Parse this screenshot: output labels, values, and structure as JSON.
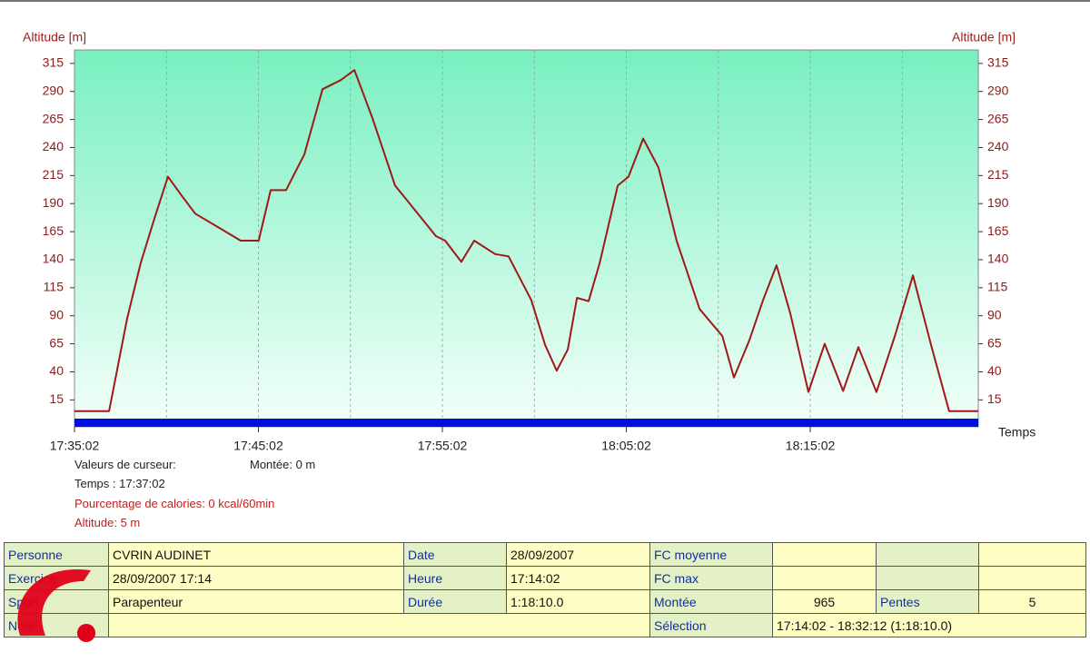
{
  "chart_data": {
    "type": "line",
    "ylabel": "Altitude [m]",
    "y2label": "Altitude [m]",
    "xlabel": "Temps",
    "color": "#a01818",
    "x": [
      "17:35:02",
      "17:36:55",
      "17:37:54",
      "17:38:38",
      "17:39:23",
      "17:40:07",
      "17:40:52",
      "17:41:36",
      "17:42:50",
      "17:44:04",
      "17:45:03",
      "17:45:42",
      "17:46:32",
      "17:47:32",
      "17:48:31",
      "17:49:30",
      "17:50:15",
      "17:51:14",
      "17:52:28",
      "17:53:42",
      "17:54:41",
      "17:55:11",
      "17:56:04",
      "17:56:46",
      "17:57:54",
      "17:58:38",
      "17:59:52",
      "18:00:37",
      "18:01:15",
      "18:01:51",
      "18:02:21",
      "18:02:59",
      "18:03:35",
      "18:04:34",
      "18:05:09",
      "18:05:57",
      "18:06:47",
      "18:07:46",
      "18:09:01",
      "18:10:15",
      "18:10:53",
      "18:11:43",
      "18:12:28",
      "18:13:12",
      "18:13:57",
      "18:14:56",
      "18:15:49",
      "18:16:49",
      "18:17:39",
      "18:18:38",
      "18:19:38",
      "18:20:37",
      "18:21:36",
      "18:22:35",
      "18:24:10"
    ],
    "values": [
      5,
      5,
      88,
      137,
      177,
      214,
      197,
      181,
      169,
      157,
      157,
      202,
      202,
      234,
      292,
      300,
      309,
      266,
      206,
      181,
      161,
      157,
      138,
      157,
      145,
      143,
      104,
      64,
      41,
      60,
      106,
      103,
      137,
      206,
      214,
      248,
      222,
      157,
      96,
      72,
      35,
      68,
      104,
      135,
      92,
      22,
      65,
      23,
      62,
      22,
      72,
      126,
      64,
      5,
      5
    ],
    "xlim": [
      "17:35:02",
      "18:24:10"
    ],
    "xticks": [
      "17:35:02",
      "17:45:02",
      "17:55:02",
      "18:05:02",
      "18:15:02"
    ],
    "xminor": [
      "17:40:02",
      "17:50:02",
      "18:00:02",
      "18:10:02",
      "18:20:02"
    ],
    "ylim": [
      -9,
      327
    ],
    "yticks": [
      15,
      40,
      65,
      90,
      115,
      140,
      165,
      190,
      215,
      240,
      265,
      290,
      315
    ],
    "grid": true
  },
  "cursor": {
    "title": "Valeurs de curseur:",
    "climb": "Montée: 0 m",
    "time": "Temps : 17:37:02",
    "calories": "Pourcentage de calories: 0 kcal/60min",
    "altitude": "Altitude: 5 m"
  },
  "table": {
    "rows": [
      [
        "Personne",
        "CVRIN AUDINET",
        "Date",
        "28/09/2007",
        "FC moyenne"
      ],
      [
        "Exercice",
        "28/09/2007 17:14",
        "Heure",
        "17:14:02",
        "FC max"
      ],
      [
        "Sport",
        "Parapenteur",
        "Durée",
        "1:18:10.0",
        "Montée",
        965,
        "Pentes",
        5
      ],
      [
        "Note",
        "Sélection",
        "17:14:02 - 18:32:12 (1:18:10.0)"
      ]
    ]
  }
}
